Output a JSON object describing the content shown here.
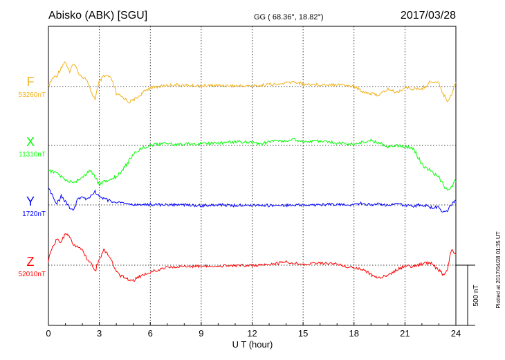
{
  "header": {
    "station": "Abisko (ABK)  [SGU]",
    "coords": "GG ( 68.36°,  18.82°)",
    "date": "2017/03/28"
  },
  "side_note": "Plotted at 2017/04/28 01:35 UT",
  "chart_data": {
    "type": "line",
    "title": "Abisko (ABK)  [SGU]",
    "xlabel": "U T (hour)",
    "xlim": [
      0,
      24
    ],
    "xticks": [
      "0",
      "3",
      "6",
      "9",
      "12",
      "15",
      "18",
      "21",
      "24"
    ],
    "grid": true,
    "scale_bar": {
      "label": "500 nT",
      "value_nT": 500
    },
    "series": [
      {
        "name": "F",
        "baseline_label": "53260nT",
        "baseline_nT": 53260,
        "color": "#f2b21c",
        "x": [
          0,
          0.25,
          0.5,
          0.75,
          1,
          1.25,
          1.5,
          1.75,
          2,
          2.25,
          2.5,
          2.75,
          3,
          3.25,
          3.5,
          3.75,
          4,
          4.25,
          4.5,
          4.75,
          5,
          5.25,
          5.5,
          5.75,
          6,
          6.5,
          7,
          7.5,
          8,
          9,
          10,
          11,
          12,
          12.5,
          13,
          13.5,
          14,
          14.5,
          15,
          16,
          17,
          17.5,
          18,
          18.5,
          19,
          19.5,
          20,
          20.5,
          21,
          21.5,
          22,
          22.5,
          23,
          23.25,
          23.5,
          23.75,
          24
        ],
        "y": [
          53260,
          53330,
          53350,
          53420,
          53470,
          53370,
          53460,
          53380,
          53340,
          53320,
          53210,
          53160,
          53300,
          53340,
          53350,
          53310,
          53200,
          53180,
          53160,
          53130,
          53150,
          53170,
          53200,
          53230,
          53250,
          53260,
          53270,
          53275,
          53270,
          53265,
          53270,
          53265,
          53265,
          53270,
          53280,
          53275,
          53290,
          53300,
          53280,
          53275,
          53280,
          53270,
          53260,
          53220,
          53200,
          53190,
          53240,
          53210,
          53250,
          53240,
          53240,
          53300,
          53290,
          53200,
          53140,
          53200,
          53300
        ]
      },
      {
        "name": "X",
        "baseline_label": "11310nT",
        "baseline_nT": 11310,
        "color": "#00ff00",
        "x": [
          0,
          0.5,
          1,
          1.5,
          2,
          2.5,
          3,
          3.5,
          4,
          4.5,
          5,
          5.5,
          6,
          6.5,
          7,
          7.5,
          8,
          9,
          10,
          11,
          12,
          12.5,
          13,
          13.5,
          14,
          14.5,
          15,
          16,
          17,
          17.5,
          18,
          18.5,
          19,
          19.5,
          20,
          20.5,
          21,
          21.5,
          22,
          22.5,
          23,
          23.25,
          23.5,
          23.75,
          24
        ],
        "y": [
          11100,
          11080,
          11020,
          11000,
          11050,
          11100,
          10990,
          11020,
          11050,
          11130,
          11240,
          11290,
          11310,
          11320,
          11330,
          11315,
          11320,
          11325,
          11330,
          11340,
          11335,
          11320,
          11340,
          11350,
          11345,
          11360,
          11340,
          11345,
          11330,
          11325,
          11320,
          11335,
          11350,
          11330,
          11300,
          11310,
          11300,
          11280,
          11150,
          11100,
          11050,
          10980,
          10940,
          10970,
          11020
        ]
      },
      {
        "name": "Y",
        "baseline_label": "1720nT",
        "baseline_nT": 1720,
        "color": "#0000ff",
        "x": [
          0,
          0.25,
          0.5,
          0.75,
          1,
          1.25,
          1.5,
          1.75,
          2,
          2.25,
          2.5,
          2.75,
          3,
          3.5,
          4,
          4.5,
          5,
          5.5,
          6,
          7,
          8,
          9,
          10,
          11,
          12,
          13,
          14,
          15,
          16,
          17,
          18,
          18.5,
          19,
          19.5,
          20,
          20.5,
          21,
          21.5,
          22,
          22.5,
          23,
          23.25,
          23.5,
          23.75,
          24
        ],
        "y": [
          1850,
          1800,
          1730,
          1790,
          1750,
          1700,
          1680,
          1770,
          1790,
          1760,
          1800,
          1830,
          1790,
          1760,
          1740,
          1735,
          1720,
          1720,
          1725,
          1720,
          1720,
          1715,
          1720,
          1715,
          1720,
          1715,
          1715,
          1720,
          1720,
          1725,
          1720,
          1735,
          1720,
          1730,
          1715,
          1725,
          1720,
          1710,
          1725,
          1700,
          1700,
          1660,
          1670,
          1730,
          1760
        ]
      },
      {
        "name": "Z",
        "baseline_label": "52010nT",
        "baseline_nT": 52010,
        "color": "#ff0000",
        "x": [
          0,
          0.25,
          0.5,
          0.75,
          1,
          1.25,
          1.5,
          1.75,
          2,
          2.25,
          2.5,
          2.75,
          3,
          3.25,
          3.5,
          3.75,
          4,
          4.25,
          4.5,
          4.75,
          5,
          5.25,
          5.5,
          6,
          6.5,
          7,
          8,
          9,
          10,
          11,
          12,
          13,
          14,
          14.5,
          15,
          16,
          17,
          17.5,
          18,
          18.5,
          19,
          19.5,
          20,
          20.5,
          21,
          21.5,
          22,
          22.5,
          23,
          23.25,
          23.5,
          23.75,
          24
        ],
        "y": [
          52050,
          52160,
          52230,
          52200,
          52270,
          52250,
          52180,
          52160,
          52130,
          52070,
          52030,
          51960,
          52060,
          52140,
          52100,
          52050,
          51960,
          51920,
          51910,
          51890,
          51880,
          51910,
          51920,
          51950,
          51975,
          51990,
          52000,
          52000,
          52005,
          52005,
          52010,
          52010,
          52040,
          52025,
          52020,
          52025,
          52020,
          52000,
          51990,
          51970,
          51930,
          51900,
          51930,
          51970,
          52000,
          52000,
          52020,
          52030,
          51970,
          51930,
          51960,
          52150,
          52100
        ]
      }
    ]
  }
}
